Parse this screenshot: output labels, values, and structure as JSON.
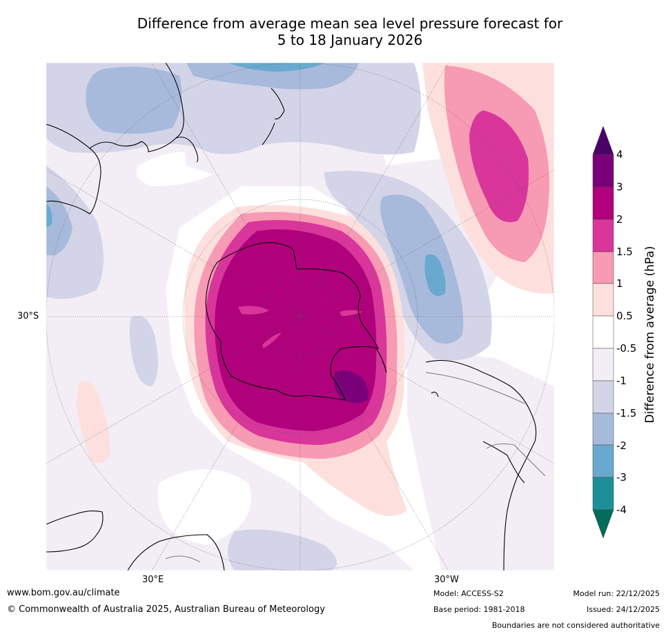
{
  "title": {
    "line1": "Difference from average mean sea level pressure forecast for",
    "line2": "5 to 18 January 2026"
  },
  "map": {
    "projection": "south-polar-stereographic",
    "lat_label": "30°S",
    "lon_labels": [
      "30°E",
      "30°W"
    ]
  },
  "colorbar": {
    "title": "Difference from average (hPa)",
    "ticks": [
      "4",
      "3",
      "2",
      "1.5",
      "1",
      "0.5",
      "-0.5",
      "-1",
      "-1.5",
      "-2",
      "-3",
      "-4"
    ],
    "colors": {
      "above_4": "#4b0068",
      "3_to_4": "#7a0079",
      "2_to_3": "#b0007c",
      "1.5_to_2": "#d8369a",
      "1_to_1.5": "#f79ab3",
      "0.5_to_1": "#fde0de",
      "neutral": "#ffffff",
      "-1_to_-0.5": "#f3edf5",
      "-1.5_to_-1": "#d3d4e7",
      "-2_to_-1.5": "#a8badb",
      "-3_to_-2": "#69a9cf",
      "-4_to_-3": "#1c9099",
      "below_-4": "#016c59"
    }
  },
  "footer": {
    "url": "www.bom.gov.au/climate",
    "copyright": "© Commonwealth of Australia 2025, Australian Bureau of Meteorology",
    "model": "Model: ACCESS-S2",
    "base_period": "Base period: 1981-2018",
    "model_run": "Model run: 22/12/2025",
    "issued": "Issued: 24/12/2025",
    "disclaimer": "Boundaries are not considered authoritative"
  }
}
